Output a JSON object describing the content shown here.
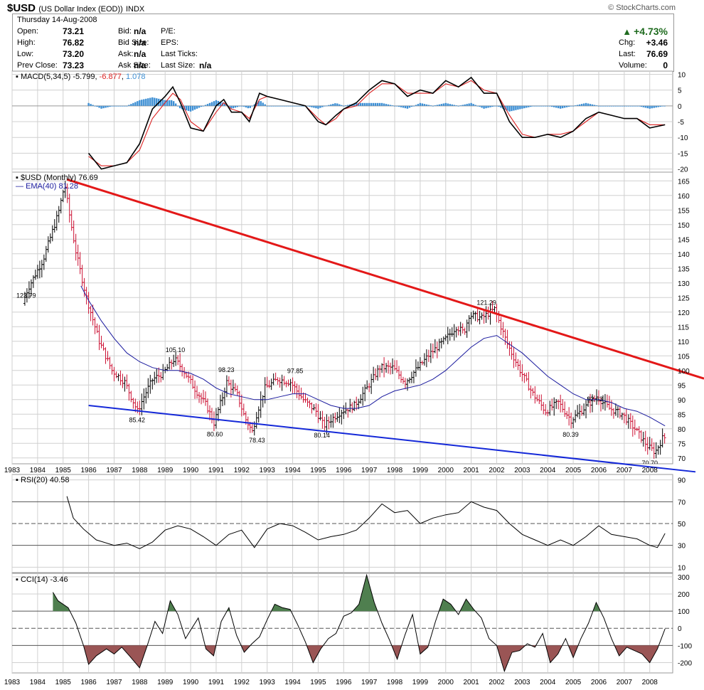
{
  "header": {
    "symbol": "$USD",
    "description": "(US Dollar Index (EOD))",
    "exchange": "INDX",
    "brand": "© StockCharts.com",
    "date": "Thursday  14-Aug-2008"
  },
  "quote": {
    "open_label": "Open:",
    "open": "73.21",
    "high_label": "High:",
    "high": "76.82",
    "low_label": "Low:",
    "low": "73.20",
    "prev_label": "Prev Close:",
    "prev": "73.23",
    "bid_label": "Bid:",
    "bid": "n/a",
    "bidsize_label": "Bid Size:",
    "bidsize": "n/a",
    "ask_label": "Ask:",
    "ask": "n/a",
    "asksize_label": "Ask Size:",
    "asksize": "n/a",
    "pe_label": "P/E:",
    "eps_label": "EPS:",
    "lastticks_label": "Last Ticks:",
    "lastsize_label": "Last Size:",
    "lastsize": "n/a",
    "change_pct": "+4.73%",
    "chg_label": "Chg:",
    "chg": "+3.46",
    "last_label": "Last:",
    "last": "76.69",
    "volume_label": "Volume:",
    "volume": "0"
  },
  "colors": {
    "grid": "#d0d0d0",
    "up": "#000000",
    "down": "#cc1133",
    "resistance": "#e31818",
    "support": "#1428d8",
    "ema": "#1a1a9e",
    "macd_signal": "#dd2222",
    "macd_hist": "#3d8fd4",
    "cci_pos": "#4f7f4f",
    "cci_neg": "#9a5555",
    "up_arrow": "#1f6b1f"
  },
  "chart_data": [
    {
      "type": "line",
      "panel": "macd",
      "title": "MACD(5,34,5)",
      "values_text": [
        "-5.799",
        "-6.877",
        "1.078"
      ],
      "ylim": [
        -21,
        11
      ],
      "yticks": [
        10,
        5,
        0,
        -5,
        -10,
        -15,
        -20
      ],
      "series": [
        {
          "name": "MACD",
          "color": "#000000",
          "x": [
            1986.0,
            1986.5,
            1987.0,
            1987.5,
            1988.0,
            1988.5,
            1989.0,
            1989.3,
            1989.6,
            1990.0,
            1990.5,
            1991.0,
            1991.3,
            1991.6,
            1992.0,
            1992.3,
            1992.7,
            1993.0,
            1993.5,
            1994.0,
            1994.5,
            1995.0,
            1995.3,
            1995.7,
            1996.0,
            1996.5,
            1997.0,
            1997.5,
            1998.0,
            1998.5,
            1999.0,
            1999.5,
            2000.0,
            2000.5,
            2001.0,
            2001.5,
            2002.0,
            2002.5,
            2003.0,
            2003.5,
            2004.0,
            2004.5,
            2005.0,
            2005.5,
            2006.0,
            2006.5,
            2007.0,
            2007.5,
            2008.0,
            2008.6
          ],
          "y": [
            -15,
            -20,
            -19,
            -18,
            -12,
            -1,
            3,
            6,
            1,
            -7,
            -8,
            0,
            2,
            -2,
            -2,
            -5,
            4,
            3,
            2,
            1,
            0,
            -5,
            -6,
            -3,
            -1,
            1,
            5,
            8,
            7,
            3,
            5,
            4,
            8,
            6,
            9,
            4,
            4,
            -5,
            -10,
            -10,
            -9,
            -10,
            -8,
            -4,
            -2,
            -3,
            -4,
            -4,
            -7,
            -6
          ]
        },
        {
          "name": "Signal",
          "color": "#dd2222",
          "x": [
            1986.0,
            1986.5,
            1987.0,
            1987.5,
            1988.0,
            1988.5,
            1989.0,
            1989.3,
            1989.6,
            1990.0,
            1990.5,
            1991.0,
            1991.3,
            1991.6,
            1992.0,
            1992.3,
            1992.7,
            1993.0,
            1993.5,
            1994.0,
            1994.5,
            1995.0,
            1995.3,
            1995.7,
            1996.0,
            1996.5,
            1997.0,
            1997.5,
            1998.0,
            1998.5,
            1999.0,
            1999.5,
            2000.0,
            2000.5,
            2001.0,
            2001.5,
            2002.0,
            2002.5,
            2003.0,
            2003.5,
            2004.0,
            2004.5,
            2005.0,
            2005.5,
            2006.0,
            2006.5,
            2007.0,
            2007.5,
            2008.0,
            2008.6
          ],
          "y": [
            -16,
            -19,
            -19,
            -18,
            -14,
            -4,
            1,
            4,
            2,
            -5,
            -8,
            -2,
            1,
            -1,
            -2,
            -4,
            2,
            3,
            2,
            1,
            0,
            -4,
            -6,
            -4,
            -1,
            0,
            4,
            7,
            7,
            4,
            4,
            4,
            7,
            6,
            8,
            5,
            4,
            -3,
            -9,
            -10,
            -9,
            -9,
            -8,
            -5,
            -2,
            -3,
            -4,
            -4,
            -6,
            -6
          ]
        }
      ]
    },
    {
      "type": "bar",
      "panel": "price",
      "title": "$USD (Monthly) 76.69",
      "ema_label": "EMA(40) 81.28",
      "ylim": [
        68,
        168
      ],
      "yticks": [
        165,
        160,
        155,
        150,
        145,
        140,
        135,
        130,
        125,
        120,
        115,
        110,
        105,
        100,
        95,
        90,
        85,
        80,
        75,
        70
      ],
      "price_path": {
        "x": [
          1983.5,
          1983.7,
          1984.0,
          1984.3,
          1984.6,
          1984.9,
          1985.15,
          1985.3,
          1985.6,
          1986.0,
          1986.5,
          1987.0,
          1987.5,
          1988.0,
          1988.3,
          1988.6,
          1989.0,
          1989.45,
          1989.8,
          1990.3,
          1990.7,
          1991.0,
          1991.3,
          1991.5,
          1991.9,
          1992.2,
          1992.5,
          1992.7,
          1993.0,
          1993.5,
          1994.0,
          1994.5,
          1995.0,
          1995.3,
          1995.7,
          1996.0,
          1996.5,
          1997.0,
          1997.5,
          1998.0,
          1998.5,
          1999.0,
          1999.5,
          2000.0,
          2000.5,
          2000.8,
          2001.0,
          2001.5,
          2002.0,
          2002.5,
          2003.0,
          2003.5,
          2004.0,
          2004.5,
          2005.0,
          2005.5,
          2006.0,
          2006.5,
          2007.0,
          2007.5,
          2008.0,
          2008.3,
          2008.6
        ],
        "y": [
          123,
          128,
          133,
          138,
          146,
          154,
          164,
          155,
          140,
          125,
          110,
          100,
          96,
          86,
          92,
          97,
          99,
          104,
          100,
          93,
          88,
          82,
          90,
          96,
          92,
          84,
          79,
          86,
          94,
          97,
          96,
          90,
          86,
          81,
          84,
          86,
          88,
          94,
          101,
          101,
          96,
          101,
          106,
          110,
          115,
          113,
          119,
          118,
          121,
          109,
          100,
          92,
          86,
          89,
          83,
          87,
          91,
          87,
          85,
          80,
          74,
          72,
          77
        ]
      },
      "ema": {
        "x": [
          1985.7,
          1986.0,
          1986.5,
          1987.0,
          1987.5,
          1988.0,
          1988.5,
          1989.0,
          1989.5,
          1990.0,
          1990.5,
          1991.0,
          1991.5,
          1992.0,
          1992.5,
          1993.0,
          1993.5,
          1994.0,
          1994.5,
          1995.0,
          1995.5,
          1996.0,
          1996.5,
          1997.0,
          1997.5,
          1998.0,
          1998.5,
          1999.0,
          1999.5,
          2000.0,
          2000.5,
          2001.0,
          2001.5,
          2002.0,
          2002.5,
          2003.0,
          2003.5,
          2004.0,
          2004.5,
          2005.0,
          2005.5,
          2006.0,
          2006.5,
          2007.0,
          2007.5,
          2008.0,
          2008.6
        ],
        "y": [
          129,
          124,
          117,
          111,
          106,
          103,
          101,
          100,
          100,
          99,
          97,
          94,
          92,
          91,
          90,
          90,
          91,
          92,
          92,
          90,
          88,
          87,
          87,
          88,
          91,
          93,
          94,
          95,
          97,
          100,
          104,
          108,
          111,
          112,
          109,
          106,
          102,
          98,
          95,
          92,
          90,
          90,
          89,
          87,
          86,
          84,
          81
        ]
      },
      "resistance": {
        "x": [
          1985.15,
          2009.0
        ],
        "y": [
          165.5,
          100.3
        ]
      },
      "support": {
        "x": [
          1986.0,
          2009.0
        ],
        "y": [
          88.0,
          66.0
        ]
      },
      "annotations": [
        {
          "text": "123.79",
          "x": 1983.55,
          "y": 123.79
        },
        {
          "text": "85.42",
          "x": 1987.9,
          "y": 85.42
        },
        {
          "text": "105.10",
          "x": 1989.4,
          "y": 105.1
        },
        {
          "text": "80.60",
          "x": 1990.95,
          "y": 80.6
        },
        {
          "text": "98.23",
          "x": 1991.4,
          "y": 98.23
        },
        {
          "text": "78.43",
          "x": 1992.6,
          "y": 78.43
        },
        {
          "text": "97.85",
          "x": 1994.1,
          "y": 97.85
        },
        {
          "text": "80.14",
          "x": 1995.15,
          "y": 80.14
        },
        {
          "text": "121.29",
          "x": 2001.6,
          "y": 121.29
        },
        {
          "text": "80.39",
          "x": 2004.9,
          "y": 80.39
        },
        {
          "text": "92.63",
          "x": 2005.85,
          "y": 92.63
        },
        {
          "text": "70.70",
          "x": 2008.0,
          "y": 70.7
        }
      ]
    },
    {
      "type": "line",
      "panel": "rsi",
      "title": "RSI(20) 40.58",
      "ylim": [
        5,
        95
      ],
      "yticks": [
        90,
        70,
        50,
        30,
        10
      ],
      "series": [
        {
          "name": "RSI",
          "color": "#000000",
          "x": [
            1985.15,
            1985.4,
            1985.8,
            1986.3,
            1987.0,
            1987.5,
            1988.0,
            1988.5,
            1989.0,
            1989.5,
            1990.0,
            1990.5,
            1991.0,
            1991.5,
            1992.0,
            1992.5,
            1993.0,
            1993.5,
            1994.0,
            1994.5,
            1995.0,
            1995.5,
            1996.0,
            1996.5,
            1997.0,
            1997.5,
            1998.0,
            1998.5,
            1999.0,
            1999.5,
            2000.0,
            2000.5,
            2001.0,
            2001.5,
            2002.0,
            2002.5,
            2003.0,
            2003.5,
            2004.0,
            2004.5,
            2005.0,
            2005.5,
            2006.0,
            2006.5,
            2007.0,
            2007.5,
            2008.0,
            2008.3,
            2008.6
          ],
          "y": [
            75,
            55,
            45,
            35,
            30,
            32,
            27,
            33,
            44,
            48,
            45,
            38,
            30,
            40,
            44,
            28,
            45,
            50,
            48,
            42,
            35,
            38,
            40,
            44,
            55,
            68,
            60,
            62,
            50,
            55,
            58,
            60,
            70,
            65,
            62,
            50,
            40,
            35,
            30,
            35,
            30,
            38,
            48,
            40,
            38,
            36,
            30,
            28,
            41
          ]
        }
      ]
    },
    {
      "type": "line",
      "panel": "cci",
      "title": "CCI(14) -3.46",
      "ylim": [
        -260,
        320
      ],
      "yticks": [
        300,
        200,
        100,
        0,
        -100,
        -200
      ],
      "series": [
        {
          "name": "CCI",
          "color": "#000000",
          "x": [
            1984.6,
            1984.8,
            1985.0,
            1985.2,
            1985.5,
            1985.8,
            1986.0,
            1986.3,
            1986.7,
            1987.0,
            1987.3,
            1987.6,
            1988.0,
            1988.3,
            1988.6,
            1988.9,
            1989.2,
            1989.5,
            1989.8,
            1990.0,
            1990.3,
            1990.6,
            1990.9,
            1991.2,
            1991.5,
            1991.8,
            1992.1,
            1992.4,
            1992.7,
            1993.0,
            1993.3,
            1993.6,
            1993.9,
            1994.2,
            1994.5,
            1994.8,
            1995.1,
            1995.4,
            1995.7,
            1996.0,
            1996.3,
            1996.6,
            1996.9,
            1997.2,
            1997.5,
            1997.8,
            1998.1,
            1998.4,
            1998.7,
            1999.0,
            1999.3,
            1999.6,
            1999.9,
            2000.2,
            2000.5,
            2000.8,
            2001.1,
            2001.4,
            2001.7,
            2002.0,
            2002.3,
            2002.6,
            2002.9,
            2003.2,
            2003.5,
            2003.8,
            2004.1,
            2004.4,
            2004.7,
            2005.0,
            2005.3,
            2005.6,
            2005.9,
            2006.2,
            2006.5,
            2006.8,
            2007.1,
            2007.4,
            2007.7,
            2008.0,
            2008.3,
            2008.6
          ],
          "y": [
            210,
            160,
            140,
            120,
            30,
            -100,
            -210,
            -160,
            -120,
            -150,
            -110,
            -160,
            -230,
            -100,
            40,
            -30,
            160,
            80,
            -60,
            -10,
            60,
            -120,
            -160,
            40,
            120,
            -40,
            -140,
            -90,
            -50,
            50,
            140,
            120,
            110,
            20,
            -80,
            -200,
            -120,
            -60,
            -30,
            70,
            90,
            140,
            310,
            150,
            30,
            -70,
            -180,
            -40,
            80,
            -150,
            -110,
            40,
            170,
            140,
            80,
            170,
            110,
            60,
            -60,
            -100,
            -250,
            -140,
            -130,
            -90,
            -110,
            -30,
            -200,
            -150,
            -60,
            -170,
            -60,
            30,
            150,
            60,
            -60,
            -160,
            -110,
            -130,
            -150,
            -200,
            -120,
            -3
          ]
        }
      ]
    }
  ],
  "x_axis": {
    "range": [
      1983.0,
      2008.9
    ],
    "year_ticks": [
      1983,
      1984,
      1985,
      1986,
      1987,
      1988,
      1989,
      1990,
      1991,
      1992,
      1993,
      1994,
      1995,
      1996,
      1997,
      1998,
      1999,
      2000,
      2001,
      2002,
      2003,
      2004,
      2005,
      2006,
      2007,
      2008
    ],
    "year_labels": [
      "1983",
      "1984",
      "1985",
      "1986",
      "1987",
      "1988",
      "1989",
      "1990",
      "1991",
      "1992",
      "1993",
      "1994",
      "1995",
      "1996",
      "1997",
      "1998",
      "1999",
      "2000",
      "2001",
      "2002",
      "2003",
      "2004",
      "2005",
      "2006",
      "2007",
      "2008"
    ]
  }
}
